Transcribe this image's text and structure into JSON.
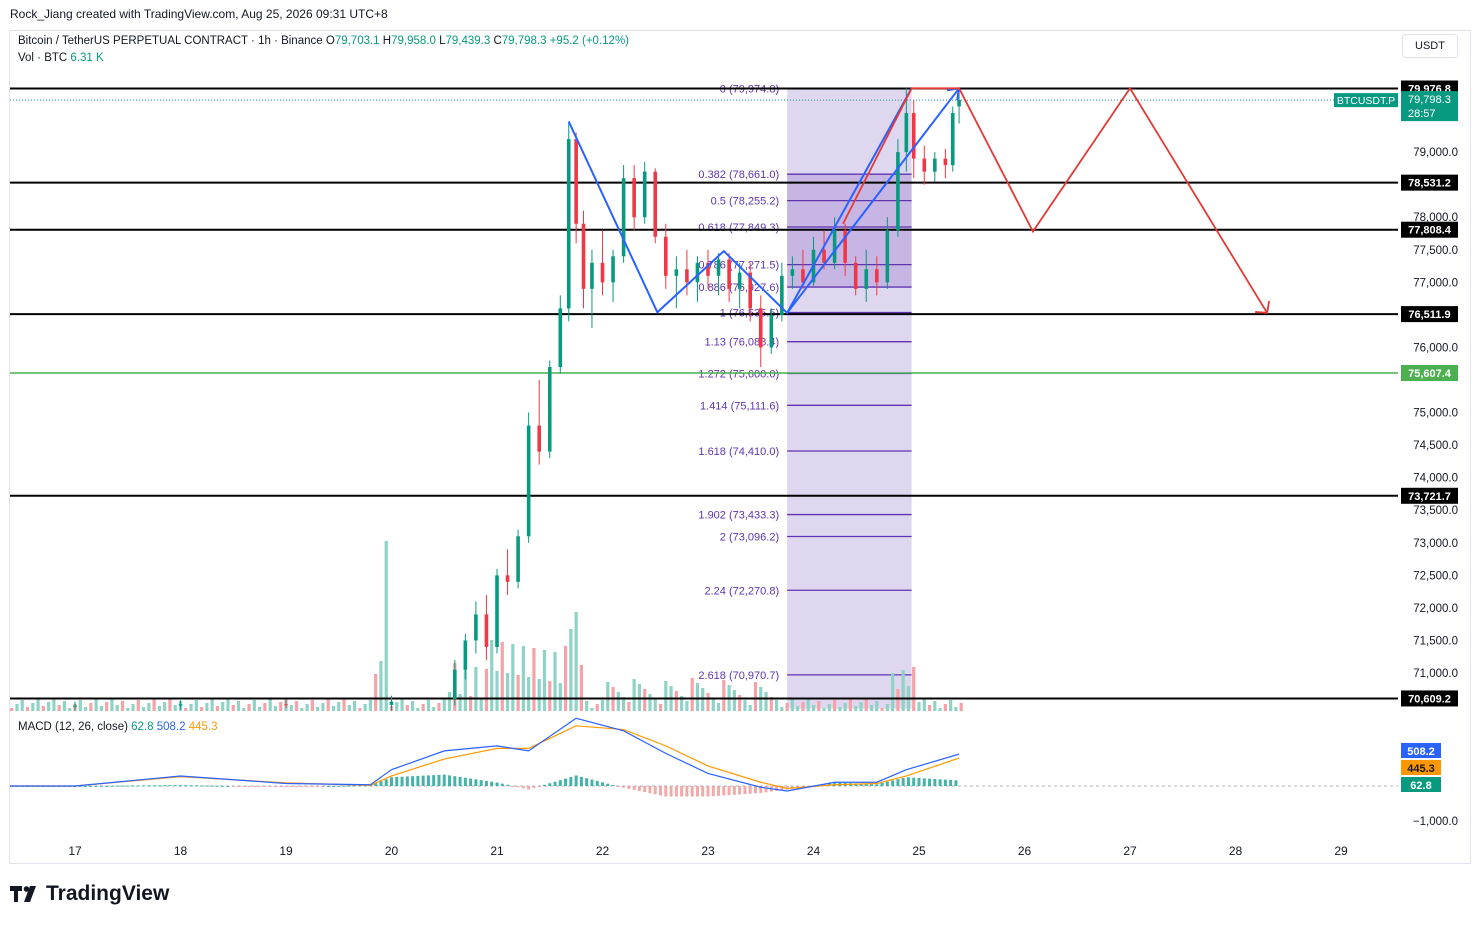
{
  "header": {
    "credit": "Rock_Jiang created with TradingView.com, Aug 25, 2026 09:31 UTC+8"
  },
  "legend": {
    "symbol": "Bitcoin / TetherUS PERPETUAL CONTRACT · 1h · Binance",
    "o_label": "O",
    "o_value": "79,703.1",
    "h_label": "H",
    "h_value": "79,958.0",
    "l_label": "L",
    "l_value": "79,439.3",
    "c_label": "C",
    "c_value": "79,798.3",
    "change": "+95.2 (+0.12%)",
    "vol_label": "Vol · BTC",
    "vol_value": "6.31 K"
  },
  "macd_legend": {
    "label": "MACD (12, 26, close)",
    "hist": "62.8",
    "macd": "508.2",
    "signal": "445.3"
  },
  "currency_button": "USDT",
  "brand": "TradingView",
  "colors": {
    "up": "#089981",
    "down": "#f23645",
    "fib_zone": "#d1c4e9",
    "fib_line": "#5e35b1",
    "blue_pattern": "#2962ff",
    "red_projection": "#e53935",
    "green_level": "#4caf50",
    "macd_line": "#2962ff",
    "signal_line": "#ff9800"
  },
  "chart_data": {
    "type": "candlestick",
    "price_axis": {
      "range": [
        70300,
        80500
      ],
      "ticks": [
        "79,000.0",
        "78,000.0",
        "77,500.0",
        "77,000.0",
        "76,000.0",
        "75,000.0",
        "74,500.0",
        "74,000.0",
        "73,500.0",
        "73,000.0",
        "72,500.0",
        "72,000.0",
        "71,500.0",
        "71,000.0"
      ],
      "tick_values": [
        79000,
        78000,
        77500,
        77000,
        76000,
        75000,
        74500,
        74000,
        73500,
        73000,
        72500,
        72000,
        71500,
        71000
      ]
    },
    "time_axis": {
      "labels": [
        "17",
        "18",
        "19",
        "20",
        "21",
        "22",
        "23",
        "24",
        "25",
        "26",
        "27",
        "28",
        "29"
      ]
    },
    "current_price": {
      "symbol": "BTCUSDT.P",
      "price": "79,798.3",
      "countdown": "28:57",
      "value": 79798.3
    },
    "horizontal_levels": [
      {
        "label": "79,976.8",
        "value": 79976.8,
        "color": "#000000"
      },
      {
        "label": "78,531.2",
        "value": 78531.2,
        "color": "#000000"
      },
      {
        "label": "77,808.4",
        "value": 77808.4,
        "color": "#000000"
      },
      {
        "label": "76,511.9",
        "value": 76511.9,
        "color": "#000000"
      },
      {
        "label": "75,607.4",
        "value": 75607.4,
        "color": "#4caf50"
      },
      {
        "label": "73,721.7",
        "value": 73721.7,
        "color": "#000000"
      },
      {
        "label": "70,609.2",
        "value": 70609.2,
        "color": "#000000"
      }
    ],
    "fibonacci": {
      "levels": [
        {
          "label": "0 (79,974.8)",
          "value": 79974.8
        },
        {
          "label": "0.382 (78,661.0)",
          "value": 78661.0
        },
        {
          "label": "0.5 (78,255.2)",
          "value": 78255.2
        },
        {
          "label": "0.618 (77,849.3)",
          "value": 77849.3
        },
        {
          "label": "0.786 (77,271.5)",
          "value": 77271.5
        },
        {
          "label": "0.886 (76,927.6)",
          "value": 76927.6
        },
        {
          "label": "1 (76,535.5)",
          "value": 76535.5
        },
        {
          "label": "1.13 (76,088.4)",
          "value": 76088.4
        },
        {
          "label": "1.272 (75,600.0)",
          "value": 75600.0
        },
        {
          "label": "1.414 (75,111.6)",
          "value": 75111.6
        },
        {
          "label": "1.618 (74,410.0)",
          "value": 74410.0
        },
        {
          "label": "1.902 (73,433.3)",
          "value": 73433.3
        },
        {
          "label": "2 (73,096.2)",
          "value": 73096.2
        },
        {
          "label": "2.24 (72,270.8)",
          "value": 72270.8
        },
        {
          "label": "2.618 (70,970.7)",
          "value": 70970.7
        }
      ],
      "time_start": 23.75,
      "time_end": 24.93
    },
    "blue_pattern": [
      {
        "t": 21.68,
        "p": 79470
      },
      {
        "t": 22.52,
        "p": 76540
      },
      {
        "t": 23.15,
        "p": 77480
      },
      {
        "t": 23.75,
        "p": 76530
      },
      {
        "t": 24.93,
        "p": 79980
      },
      {
        "t": 24.95,
        "p": 79975
      }
    ],
    "blue_arrow": [
      {
        "t": 23.75,
        "p": 76530
      },
      {
        "t": 25.38,
        "p": 79980
      }
    ],
    "red_projection": [
      {
        "t": 24.28,
        "p": 77900
      },
      {
        "t": 24.93,
        "p": 79980
      },
      {
        "t": 25.38,
        "p": 79980
      },
      {
        "t": 26.08,
        "p": 77780
      },
      {
        "t": 27.0,
        "p": 79980
      },
      {
        "t": 28.3,
        "p": 76530
      }
    ],
    "candles": [
      {
        "t": 17.0,
        "o": 70480,
        "h": 70560,
        "l": 70420,
        "c": 70500
      },
      {
        "t": 18.0,
        "o": 70500,
        "h": 70580,
        "l": 70440,
        "c": 70520
      },
      {
        "t": 19.0,
        "o": 70520,
        "h": 70600,
        "l": 70460,
        "c": 70510
      },
      {
        "t": 20.0,
        "o": 70510,
        "h": 70650,
        "l": 70420,
        "c": 70560
      },
      {
        "t": 20.6,
        "o": 70600,
        "h": 71200,
        "l": 70500,
        "c": 71050
      },
      {
        "t": 20.7,
        "o": 71050,
        "h": 71600,
        "l": 70900,
        "c": 71500
      },
      {
        "t": 20.8,
        "o": 71500,
        "h": 72100,
        "l": 71300,
        "c": 71900
      },
      {
        "t": 20.9,
        "o": 71900,
        "h": 72200,
        "l": 71200,
        "c": 71400
      },
      {
        "t": 21.0,
        "o": 71400,
        "h": 72600,
        "l": 71300,
        "c": 72500
      },
      {
        "t": 21.1,
        "o": 72500,
        "h": 72900,
        "l": 72200,
        "c": 72400
      },
      {
        "t": 21.2,
        "o": 72400,
        "h": 73200,
        "l": 72300,
        "c": 73100
      },
      {
        "t": 21.3,
        "o": 73100,
        "h": 75000,
        "l": 73000,
        "c": 74800
      },
      {
        "t": 21.4,
        "o": 74800,
        "h": 75500,
        "l": 74200,
        "c": 74400
      },
      {
        "t": 21.5,
        "o": 74400,
        "h": 75800,
        "l": 74300,
        "c": 75700
      },
      {
        "t": 21.6,
        "o": 75700,
        "h": 76800,
        "l": 75600,
        "c": 76600
      },
      {
        "t": 21.68,
        "o": 76600,
        "h": 79470,
        "l": 76400,
        "c": 79200
      },
      {
        "t": 21.75,
        "o": 79200,
        "h": 79300,
        "l": 77600,
        "c": 77900
      },
      {
        "t": 21.82,
        "o": 77900,
        "h": 78100,
        "l": 76600,
        "c": 76900
      },
      {
        "t": 21.9,
        "o": 76900,
        "h": 77500,
        "l": 76300,
        "c": 77300
      },
      {
        "t": 22.0,
        "o": 77300,
        "h": 77800,
        "l": 76800,
        "c": 77000
      },
      {
        "t": 22.1,
        "o": 77000,
        "h": 77500,
        "l": 76700,
        "c": 77400
      },
      {
        "t": 22.2,
        "o": 77400,
        "h": 78800,
        "l": 77300,
        "c": 78600
      },
      {
        "t": 22.3,
        "o": 78600,
        "h": 78800,
        "l": 77800,
        "c": 78000
      },
      {
        "t": 22.4,
        "o": 78000,
        "h": 78850,
        "l": 77900,
        "c": 78700
      },
      {
        "t": 22.5,
        "o": 78700,
        "h": 78750,
        "l": 77600,
        "c": 77700
      },
      {
        "t": 22.6,
        "o": 77700,
        "h": 77900,
        "l": 76900,
        "c": 77100
      },
      {
        "t": 22.7,
        "o": 77100,
        "h": 77400,
        "l": 76600,
        "c": 77200
      },
      {
        "t": 22.8,
        "o": 77200,
        "h": 77500,
        "l": 76800,
        "c": 77000
      },
      {
        "t": 22.9,
        "o": 77000,
        "h": 77400,
        "l": 76700,
        "c": 77300
      },
      {
        "t": 23.0,
        "o": 77300,
        "h": 77500,
        "l": 76900,
        "c": 77100
      },
      {
        "t": 23.1,
        "o": 77100,
        "h": 77450,
        "l": 76800,
        "c": 77350
      },
      {
        "t": 23.2,
        "o": 77350,
        "h": 77450,
        "l": 76700,
        "c": 76900
      },
      {
        "t": 23.3,
        "o": 76900,
        "h": 77300,
        "l": 76600,
        "c": 77150
      },
      {
        "t": 23.4,
        "o": 77150,
        "h": 77300,
        "l": 76400,
        "c": 76600
      },
      {
        "t": 23.5,
        "o": 76600,
        "h": 76800,
        "l": 75700,
        "c": 76000
      },
      {
        "t": 23.6,
        "o": 76000,
        "h": 76600,
        "l": 75900,
        "c": 76500
      },
      {
        "t": 23.7,
        "o": 76500,
        "h": 77300,
        "l": 76400,
        "c": 77100
      },
      {
        "t": 23.8,
        "o": 77100,
        "h": 77400,
        "l": 76900,
        "c": 77200
      },
      {
        "t": 23.9,
        "o": 77200,
        "h": 77500,
        "l": 76900,
        "c": 77000
      },
      {
        "t": 24.0,
        "o": 77000,
        "h": 77700,
        "l": 76950,
        "c": 77500
      },
      {
        "t": 24.1,
        "o": 77500,
        "h": 77800,
        "l": 77200,
        "c": 77300
      },
      {
        "t": 24.2,
        "o": 77300,
        "h": 78000,
        "l": 77200,
        "c": 77800
      },
      {
        "t": 24.3,
        "o": 77800,
        "h": 77900,
        "l": 77100,
        "c": 77300
      },
      {
        "t": 24.4,
        "o": 77300,
        "h": 77400,
        "l": 76800,
        "c": 76900
      },
      {
        "t": 24.5,
        "o": 76900,
        "h": 77500,
        "l": 76700,
        "c": 77200
      },
      {
        "t": 24.6,
        "o": 77200,
        "h": 77400,
        "l": 76800,
        "c": 77000
      },
      {
        "t": 24.7,
        "o": 77000,
        "h": 78000,
        "l": 76900,
        "c": 77800
      },
      {
        "t": 24.8,
        "o": 77800,
        "h": 79200,
        "l": 77700,
        "c": 79000
      },
      {
        "t": 24.88,
        "o": 79000,
        "h": 79980,
        "l": 78700,
        "c": 79600
      },
      {
        "t": 24.95,
        "o": 79600,
        "h": 79800,
        "l": 78600,
        "c": 78900
      },
      {
        "t": 25.05,
        "o": 78900,
        "h": 79100,
        "l": 78500,
        "c": 78700
      },
      {
        "t": 25.15,
        "o": 78700,
        "h": 79000,
        "l": 78550,
        "c": 78900
      },
      {
        "t": 25.25,
        "o": 78900,
        "h": 79050,
        "l": 78600,
        "c": 78800
      },
      {
        "t": 25.32,
        "o": 78800,
        "h": 79700,
        "l": 78700,
        "c": 79600
      },
      {
        "t": 25.38,
        "o": 79703.1,
        "h": 79958.0,
        "l": 79439.3,
        "c": 79798.3
      }
    ],
    "macd": {
      "range": [
        -1250,
        1300
      ],
      "tick_label": "−1,000.0",
      "tick_value": -1000,
      "t": [
        17.0,
        18.0,
        19.0,
        19.8,
        20.0,
        20.5,
        21.0,
        21.3,
        21.75,
        22.2,
        22.6,
        23.0,
        23.5,
        23.75,
        24.2,
        24.6,
        24.88,
        25.38
      ],
      "line": [
        0,
        160,
        40,
        20,
        260,
        560,
        640,
        560,
        1080,
        880,
        520,
        200,
        -20,
        -80,
        60,
        60,
        260,
        508.2
      ],
      "signal": [
        0,
        150,
        50,
        10,
        160,
        430,
        600,
        600,
        960,
        900,
        640,
        320,
        60,
        -40,
        20,
        40,
        160,
        445.3
      ],
      "last_labels": {
        "macd": "508.2",
        "signal": "445.3",
        "hist": "62.8"
      }
    }
  }
}
